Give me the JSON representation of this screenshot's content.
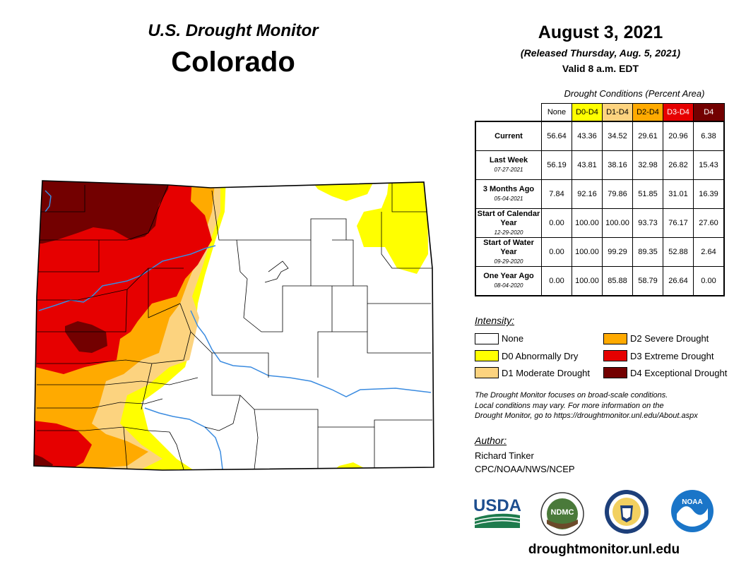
{
  "header": {
    "subtitle": "U.S. Drought Monitor",
    "state": "Colorado",
    "date": "August 3, 2021",
    "released": "(Released Thursday, Aug. 5, 2021)",
    "valid": "Valid 8 a.m. EDT"
  },
  "table": {
    "caption": "Drought Conditions (Percent Area)",
    "columns": [
      "None",
      "D0-D4",
      "D1-D4",
      "D2-D4",
      "D3-D4",
      "D4"
    ],
    "column_colors": [
      "#ffffff",
      "#ffff00",
      "#fcd37f",
      "#ffaa00",
      "#e60000",
      "#730000"
    ],
    "rows": [
      {
        "label": "Current",
        "date": "",
        "values": [
          "56.64",
          "43.36",
          "34.52",
          "29.61",
          "20.96",
          "6.38"
        ]
      },
      {
        "label": "Last Week",
        "date": "07-27-2021",
        "values": [
          "56.19",
          "43.81",
          "38.16",
          "32.98",
          "26.82",
          "15.43"
        ]
      },
      {
        "label": "3 Months Ago",
        "date": "05-04-2021",
        "values": [
          "7.84",
          "92.16",
          "79.86",
          "51.85",
          "31.01",
          "16.39"
        ]
      },
      {
        "label": "Start of Calendar Year",
        "date": "12-29-2020",
        "values": [
          "0.00",
          "100.00",
          "100.00",
          "93.73",
          "76.17",
          "27.60"
        ]
      },
      {
        "label": "Start of Water Year",
        "date": "09-29-2020",
        "values": [
          "0.00",
          "100.00",
          "99.29",
          "89.35",
          "52.88",
          "2.64"
        ]
      },
      {
        "label": "One Year Ago",
        "date": "08-04-2020",
        "values": [
          "0.00",
          "100.00",
          "85.88",
          "58.79",
          "26.64",
          "0.00"
        ]
      }
    ]
  },
  "legend": {
    "title": "Intensity:",
    "items": [
      {
        "label": "None",
        "color": "#ffffff"
      },
      {
        "label": "D0 Abnormally Dry",
        "color": "#ffff00"
      },
      {
        "label": "D1 Moderate Drought",
        "color": "#fcd37f"
      },
      {
        "label": "D2 Severe Drought",
        "color": "#ffaa00"
      },
      {
        "label": "D3 Extreme Drought",
        "color": "#e60000"
      },
      {
        "label": "D4 Exceptional Drought",
        "color": "#730000"
      }
    ]
  },
  "note": {
    "line1": "The Drought Monitor focuses on broad-scale conditions.",
    "line2": "Local conditions may vary. For more information on the",
    "line3": "Drought Monitor, go to https://droughtmonitor.unl.edu/About.aspx"
  },
  "author": {
    "title": "Author:",
    "name": "Richard Tinker",
    "org": "CPC/NOAA/NWS/NCEP"
  },
  "logos": {
    "usda": "USDA",
    "ndmc": "NDMC",
    "noaa": "NOAA"
  },
  "website": "droughtmonitor.unl.edu",
  "map_colors": {
    "none": "#ffffff",
    "d0": "#ffff00",
    "d1": "#fcd37f",
    "d2": "#ffaa00",
    "d3": "#e60000",
    "d4": "#730000",
    "river": "#3a8be0"
  }
}
